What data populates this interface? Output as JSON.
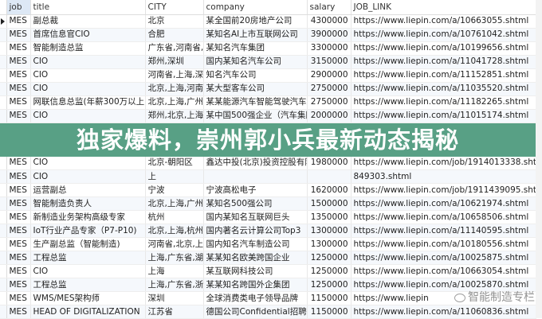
{
  "columns": [
    "job",
    "title",
    "CITY",
    "company",
    "salary",
    "JOB_LINK"
  ],
  "rows": [
    [
      "MES",
      "副总裁",
      "北京",
      "某全国前20房地产公司",
      "4300000",
      "https://www.liepin.com/a/10663055.shtml"
    ],
    [
      "MES",
      "首席信息官CIO",
      "合肥",
      "某知名AI上市互联网公司",
      "3900000",
      "https://www.liepin.com/a/10761042.shtml"
    ],
    [
      "MES",
      "智能制造总监",
      "广东省,河南省,江",
      "某知名汽车集团",
      "3300000",
      "https://www.liepin.com/a/10199656.shtml"
    ],
    [
      "MES",
      "CIO",
      "郑州,深圳",
      "国内某知名汽车公司",
      "3150000",
      "https://www.liepin.com/a/11041728.shtml"
    ],
    [
      "MES",
      "CIO",
      "河南省,上海,深圳",
      "知名汽车公司",
      "2900000",
      "https://www.liepin.com/a/11152851.shtml"
    ],
    [
      "MES",
      "CIO",
      "北京,上海,河南省",
      "某大型客车公司",
      "2750000",
      "https://www.liepin.com/a/11035520.shtml"
    ],
    [
      "MES",
      "网联信息总监(年薪300万以上)",
      "北京,上海,广州",
      "某某能源汽车智能驾驶汽车集",
      "2750000",
      "https://www.liepin.com/a/11182265.shtml"
    ],
    [
      "MES",
      "CIO",
      "郑州,北京,上海",
      "某中国500强企业（汽车集团",
      "2000000",
      "https://www.liepin.com/a/11015174.shtml"
    ],
    [
      "MES",
      "CIO",
      "北京-朝阳区",
      "鑫达中投(北京)投资控股有限",
      "1980000",
      "https://www.liepin.com/job/1914013338.shtml"
    ],
    [
      "MES",
      "CIO",
      "上",
      "",
      "",
      "849303.shtml"
    ],
    [
      "MES",
      "运营副总",
      "宁波",
      "宁波高松电子",
      "1620000",
      "https://www.liepin.com/job/1911439095.shtml"
    ],
    [
      "MES",
      "智能制造负责人",
      "北京,上海,广州",
      "某知名500强公司",
      "1500000",
      "https://www.liepin.com/a/10621974.shtml"
    ],
    [
      "MES",
      "新制造业务架构高级专家",
      "杭州",
      "国内某知名互联网巨头",
      "1350000",
      "https://www.liepin.com/a/10658506.shtml"
    ],
    [
      "MES",
      "IoT行业产品专家（P7-P10)",
      "北京,上海,杭州",
      "国内著名云计算公司Top3",
      "1300000",
      "https://www.liepin.com/a/11140595.shtml"
    ],
    [
      "MES",
      "生产副总监（智能制造)",
      "河南省,北京,上海",
      "国内知名汽车制造公司",
      "1300000",
      "https://www.liepin.com/a/10180556.shtml"
    ],
    [
      "MES",
      "工程总监",
      "上海,广东省,湖北",
      "某某知名欧美跨国企业",
      "1250000",
      "https://www.liepin.com/a/10025875.shtml"
    ],
    [
      "MES",
      "CIO",
      "上海",
      "某互联网科技公司",
      "1250000",
      "https://www.liepin.com/a/10663054.shtml"
    ],
    [
      "MES",
      "工程总监",
      "上海,广东省,浙江",
      "某某知名跨国外企集团",
      "1250000",
      "https://www.liepin.com/a/10025870.shtml"
    ],
    [
      "MES",
      "WMS/MES架构师",
      "深圳",
      "全球消费类电子领导品牌",
      "1150000",
      "https://www.liepin"
    ],
    [
      "MES",
      "HEAD OF DIGITALIZATION",
      "江苏省",
      "德国公司Confidential招聘",
      "1150000",
      "https://www.liepin.com/a/11060836.shtml"
    ]
  ],
  "banner": {
    "text": "独家爆料，崇州郭小兵最新动态揭秘",
    "color": "#46967a"
  },
  "watermark": "智能制造专栏"
}
